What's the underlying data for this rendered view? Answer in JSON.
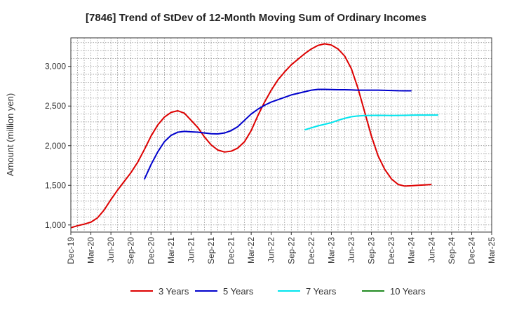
{
  "chart_data": {
    "type": "line",
    "title": "[7846]  Trend of StDev of 12-Month Moving Sum of Ordinary Incomes",
    "xlabel": "",
    "ylabel": "Amount (million yen)",
    "ylim": [
      910,
      3360
    ],
    "yticks": [
      1000,
      1500,
      2000,
      2500,
      3000
    ],
    "ytick_labels": [
      "1,000",
      "1,500",
      "2,000",
      "2,500",
      "3,000"
    ],
    "x_start": "2019-12",
    "x_end": "2025-03",
    "xtick_labels": [
      "Dec-19",
      "Mar-20",
      "Jun-20",
      "Sep-20",
      "Dec-20",
      "Mar-21",
      "Jun-21",
      "Sep-21",
      "Dec-21",
      "Mar-22",
      "Jun-22",
      "Sep-22",
      "Dec-22",
      "Mar-23",
      "Jun-23",
      "Sep-23",
      "Dec-23",
      "Mar-24",
      "Jun-24",
      "Sep-24",
      "Dec-24",
      "Mar-25"
    ],
    "grid": true,
    "legend_position": "bottom",
    "series": [
      {
        "name": "3 Years",
        "color": "#dd0000",
        "start": "2019-12",
        "values": [
          965,
          990,
          1010,
          1035,
          1090,
          1190,
          1320,
          1440,
          1550,
          1660,
          1790,
          1950,
          2120,
          2260,
          2360,
          2420,
          2440,
          2410,
          2320,
          2230,
          2110,
          2010,
          1945,
          1920,
          1930,
          1970,
          2050,
          2190,
          2380,
          2550,
          2700,
          2830,
          2930,
          3020,
          3090,
          3160,
          3220,
          3265,
          3285,
          3270,
          3220,
          3130,
          2970,
          2720,
          2420,
          2120,
          1870,
          1700,
          1580,
          1510,
          1490,
          1495,
          1500,
          1505,
          1510
        ]
      },
      {
        "name": "5 Years",
        "color": "#0000cc",
        "start": "2020-11",
        "values": [
          1575,
          1760,
          1920,
          2050,
          2130,
          2170,
          2180,
          2175,
          2170,
          2160,
          2150,
          2148,
          2160,
          2190,
          2240,
          2320,
          2400,
          2460,
          2510,
          2550,
          2580,
          2610,
          2640,
          2660,
          2680,
          2700,
          2710,
          2710,
          2708,
          2706,
          2705,
          2703,
          2700,
          2700,
          2700,
          2700,
          2698,
          2696,
          2693,
          2692,
          2692
        ]
      },
      {
        "name": "7 Years",
        "color": "#00e5ee",
        "start": "2022-11",
        "values": [
          2200,
          2225,
          2250,
          2270,
          2290,
          2320,
          2345,
          2365,
          2375,
          2380,
          2382,
          2383,
          2382,
          2380,
          2382,
          2383,
          2385,
          2386,
          2386,
          2386,
          2386
        ]
      },
      {
        "name": "10 Years",
        "color": "#228b22",
        "start": "2024-12",
        "values": []
      }
    ]
  }
}
